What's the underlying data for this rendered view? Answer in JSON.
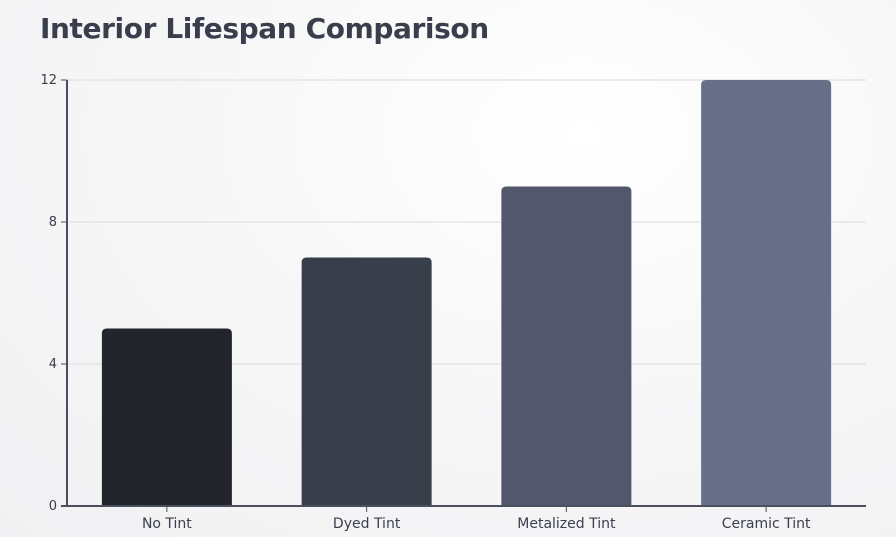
{
  "chart_data": {
    "type": "bar",
    "title": "Interior Lifespan Comparison",
    "xlabel": "",
    "ylabel": "",
    "categories": [
      "No Tint",
      "Dyed Tint",
      "Metalized Tint",
      "Ceramic Tint"
    ],
    "values": [
      5,
      7,
      9,
      12
    ],
    "ylim": [
      0,
      12
    ],
    "yticks": [
      0,
      4,
      8,
      12
    ],
    "grid": true,
    "bar_colors": [
      "#22252b",
      "#393e4b",
      "#52576b",
      "#686f88"
    ],
    "grid_color": "#dcdce0",
    "axis_color": "#4b4f5d"
  }
}
